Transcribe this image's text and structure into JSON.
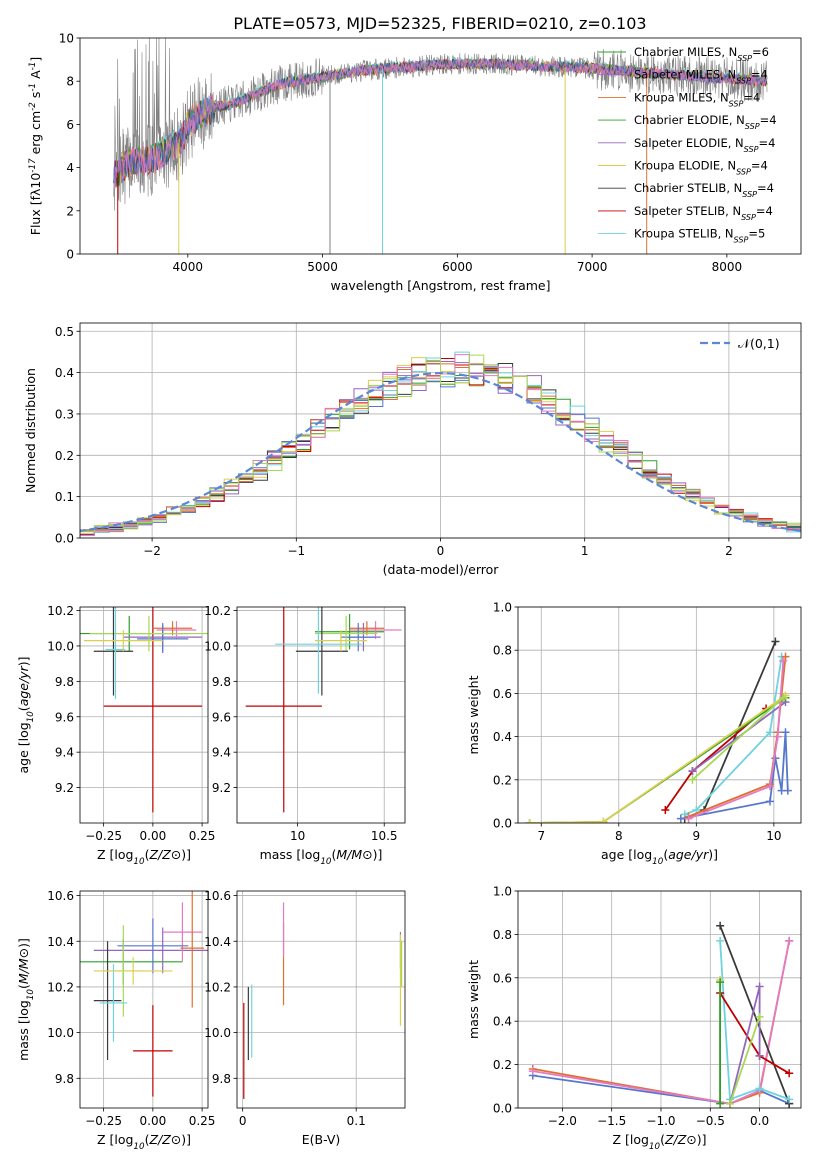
{
  "figure": {
    "title": "PLATE=0573, MJD=52325, FIBERID=0210, z=0.103"
  },
  "series_colors": [
    "#2ca02c",
    "#9467bd",
    "#dccf4e",
    "#3a3a3a",
    "#c00000",
    "#6fd3de",
    "#5577cc",
    "#e07030",
    "#e27ac4",
    "#a6d854",
    "#808080"
  ],
  "chart_data": [
    {
      "id": "spectrum",
      "type": "line",
      "xlabel": "wavelength [Angstrom, rest frame]",
      "ylabel": "Flux [f$_\\lambda$10$^{-17}$ erg cm$^{-2}$ s$^{-1}$ A$^{-1}$]",
      "xlim": [
        3200,
        8550
      ],
      "ylim": [
        0,
        10
      ],
      "xticks": [
        4000,
        5000,
        6000,
        7000,
        8000
      ],
      "yticks": [
        0,
        2,
        4,
        6,
        8,
        10
      ],
      "grid": false,
      "legend_position": "top-right",
      "legend": [
        {
          "label": "Chabrier MILES, N$_{SSP}$=6",
          "color": "#2ca02c"
        },
        {
          "label": "Salpeter MILES, N$_{SSP}$=4",
          "color": "#9467bd"
        },
        {
          "label": "Kroupa MILES, N$_{SSP}$=4",
          "color": "#e07030"
        },
        {
          "label": "Chabrier ELODIE, N$_{SSP}$=4",
          "color": "#2ca02c"
        },
        {
          "label": "Salpeter ELODIE, N$_{SSP}$=4",
          "color": "#9467bd"
        },
        {
          "label": "Kroupa ELODIE, N$_{SSP}$=4",
          "color": "#dccf4e"
        },
        {
          "label": "Chabrier STELIB, N$_{SSP}$=4",
          "color": "#3a3a3a"
        },
        {
          "label": "Salpeter STELIB, N$_{SSP}$=4",
          "color": "#c00000"
        },
        {
          "label": "Kroupa STELIB, N$_{SSP}$=5",
          "color": "#6fd3de"
        }
      ],
      "data_range": [
        3450,
        8300
      ],
      "continuum": {
        "x": [
          3450,
          3550,
          3650,
          3750,
          3850,
          3950,
          4000,
          4100,
          4200,
          4300,
          4400,
          4500,
          4700,
          4900,
          5100,
          5300,
          5500,
          5700,
          6000,
          6300,
          6600,
          7000,
          7400,
          7800,
          8300
        ],
        "y": [
          3.6,
          4.2,
          4.3,
          4.4,
          4.8,
          5.2,
          6.0,
          6.5,
          6.8,
          6.9,
          7.1,
          7.4,
          7.9,
          8.1,
          8.3,
          8.5,
          8.6,
          8.7,
          8.8,
          8.8,
          8.7,
          8.6,
          8.4,
          8.2,
          8.0
        ]
      },
      "dips": [
        {
          "x": 3933,
          "y": 0
        },
        {
          "x": 5055,
          "y": 0
        },
        {
          "x": 5445,
          "y": 0
        },
        {
          "x": 6800,
          "y": 0
        },
        {
          "x": 7405,
          "y": 0
        },
        {
          "x": 3480,
          "y": 0
        }
      ]
    },
    {
      "id": "residuals",
      "type": "histogram",
      "xlabel": "(data-model)/error",
      "ylabel": "Normed distribution",
      "xlim": [
        -2.5,
        2.5
      ],
      "ylim": [
        0,
        0.52
      ],
      "xticks": [
        -2,
        -1,
        0,
        1,
        2
      ],
      "yticks": [
        0.0,
        0.1,
        0.2,
        0.3,
        0.4,
        0.5
      ],
      "grid": true,
      "bin_width": 0.1,
      "legend_position": "top-right",
      "gaussian_label": "$\\mathcal{N}(0,1)$",
      "gaussian_color": "#5b87d6"
    },
    {
      "id": "age-vs-Z",
      "type": "scatter",
      "xlabel": "Z [log$_{10}$($Z/Z_\\odot$)]",
      "ylabel": "age  [log$_{10}$($age/yr$)]",
      "xlim": [
        -0.37,
        0.28
      ],
      "ylim": [
        9.0,
        10.22
      ],
      "xticks": [
        -0.25,
        0.0,
        0.25
      ],
      "xticklabels": [
        "−0.25",
        "0.00",
        "0.25"
      ],
      "yticks": [
        9.2,
        9.4,
        9.6,
        9.8,
        10.0,
        10.2
      ],
      "grid": true,
      "points": [
        {
          "x": 0.0,
          "y": 9.66,
          "xerr": 0.25,
          "yerr": 0.6,
          "color": "#c00000"
        },
        {
          "x": -0.12,
          "y": 10.07,
          "xerr": 0.3,
          "yerr": 0.1,
          "color": "#2ca02c"
        },
        {
          "x": 0.05,
          "y": 10.05,
          "xerr": 0.2,
          "yerr": 0.08,
          "color": "#9467bd"
        },
        {
          "x": 0.12,
          "y": 10.09,
          "xerr": 0.1,
          "yerr": 0.05,
          "color": "#e27ac4"
        },
        {
          "x": 0.1,
          "y": 10.1,
          "xerr": 0.1,
          "yerr": 0.04,
          "color": "#e07030"
        },
        {
          "x": 0.05,
          "y": 10.04,
          "xerr": 0.13,
          "yerr": 0.08,
          "color": "#5577cc"
        },
        {
          "x": -0.02,
          "y": 10.07,
          "xerr": 0.3,
          "yerr": 0.1,
          "color": "#a6d854"
        },
        {
          "x": -0.2,
          "y": 9.97,
          "xerr": 0.1,
          "yerr": 0.25,
          "color": "#3a3a3a"
        },
        {
          "x": -0.19,
          "y": 9.98,
          "xerr": 0.05,
          "yerr": 0.28,
          "color": "#6fd3de"
        },
        {
          "x": -0.15,
          "y": 10.03,
          "xerr": 0.2,
          "yerr": 0.06,
          "color": "#dccf4e"
        }
      ]
    },
    {
      "id": "age-vs-mass",
      "type": "scatter",
      "xlabel": "mass [log$_{10}$($M/M_\\odot$)]",
      "ylabel": "",
      "xlim": [
        9.65,
        10.62
      ],
      "ylim": [
        9.0,
        10.22
      ],
      "xticks": [
        10.0,
        10.5
      ],
      "yticks": [
        9.2,
        9.4,
        9.6,
        9.8,
        10.0,
        10.2
      ],
      "grid": true,
      "points": [
        {
          "x": 9.92,
          "y": 9.66,
          "xerr": 0.22,
          "yerr": 0.6,
          "color": "#c00000"
        },
        {
          "x": 10.3,
          "y": 10.08,
          "xerr": 0.2,
          "yerr": 0.1,
          "color": "#2ca02c"
        },
        {
          "x": 10.38,
          "y": 10.05,
          "xerr": 0.1,
          "yerr": 0.08,
          "color": "#9467bd"
        },
        {
          "x": 10.45,
          "y": 10.09,
          "xerr": 0.15,
          "yerr": 0.05,
          "color": "#e27ac4"
        },
        {
          "x": 10.4,
          "y": 10.1,
          "xerr": 0.1,
          "yerr": 0.04,
          "color": "#e07030"
        },
        {
          "x": 10.35,
          "y": 10.05,
          "xerr": 0.1,
          "yerr": 0.08,
          "color": "#5577cc"
        },
        {
          "x": 10.28,
          "y": 10.07,
          "xerr": 0.18,
          "yerr": 0.1,
          "color": "#a6d854"
        },
        {
          "x": 10.14,
          "y": 9.97,
          "xerr": 0.15,
          "yerr": 0.25,
          "color": "#3a3a3a"
        },
        {
          "x": 10.12,
          "y": 10.01,
          "xerr": 0.25,
          "yerr": 0.28,
          "color": "#6fd3de"
        },
        {
          "x": 10.25,
          "y": 10.03,
          "xerr": 0.15,
          "yerr": 0.06,
          "color": "#dccf4e"
        }
      ]
    },
    {
      "id": "weight-vs-age",
      "type": "line",
      "xlabel": "age  [log$_{10}$($age/yr$)]",
      "ylabel": "mass weight",
      "xlim": [
        6.7,
        10.35
      ],
      "ylim": [
        0,
        1.0
      ],
      "xticks": [
        7,
        8,
        9,
        10
      ],
      "yticks": [
        0.0,
        0.2,
        0.4,
        0.6,
        0.8,
        1.0
      ],
      "grid": true,
      "series": [
        {
          "color": "#3a3a3a",
          "x": [
            8.85,
            9.1,
            10.02
          ],
          "y": [
            0.02,
            0.06,
            0.84
          ]
        },
        {
          "color": "#c00000",
          "x": [
            8.6,
            8.95,
            9.9
          ],
          "y": [
            0.06,
            0.24,
            0.53
          ]
        },
        {
          "color": "#6fd3de",
          "x": [
            8.85,
            9.0,
            9.95,
            10.1
          ],
          "y": [
            0.04,
            0.06,
            0.42,
            0.77
          ]
        },
        {
          "color": "#9467bd",
          "x": [
            8.95,
            10.15
          ],
          "y": [
            0.24,
            0.56
          ]
        },
        {
          "color": "#2ca02c",
          "x": [
            6.85,
            7.8,
            10.15
          ],
          "y": [
            0.0,
            0.005,
            0.58
          ]
        },
        {
          "color": "#dccf4e",
          "x": [
            6.85,
            7.8,
            10.15
          ],
          "y": [
            0.0,
            0.005,
            0.59
          ]
        },
        {
          "color": "#5577cc",
          "x": [
            8.8,
            9.95,
            10.02,
            10.1,
            10.15,
            10.18
          ],
          "y": [
            0.02,
            0.1,
            0.3,
            0.15,
            0.42,
            0.15
          ]
        },
        {
          "color": "#e07030",
          "x": [
            8.9,
            9.95,
            10.05,
            10.15
          ],
          "y": [
            0.03,
            0.18,
            0.42,
            0.77
          ]
        },
        {
          "color": "#e27ac4",
          "x": [
            8.9,
            9.95,
            10.05,
            10.12
          ],
          "y": [
            0.02,
            0.17,
            0.4,
            0.75
          ]
        },
        {
          "color": "#a6d854",
          "x": [
            8.95,
            10.12
          ],
          "y": [
            0.2,
            0.58
          ]
        }
      ]
    },
    {
      "id": "mass-vs-Z",
      "type": "scatter",
      "xlabel": "Z [log$_{10}$($Z/Z_\\odot$)]",
      "ylabel": "mass [log$_{10}$($M/M_\\odot$)]",
      "xlim": [
        -0.37,
        0.28
      ],
      "ylim": [
        9.67,
        10.62
      ],
      "xticks": [
        -0.25,
        0.0,
        0.25
      ],
      "xticklabels": [
        "−0.25",
        "0.00",
        "0.25"
      ],
      "yticks": [
        9.8,
        10.0,
        10.2,
        10.4,
        10.6
      ],
      "grid": true,
      "points": [
        {
          "x": 0.0,
          "y": 9.92,
          "xerr": 0.1,
          "yerr": 0.2,
          "color": "#c00000"
        },
        {
          "x": -0.15,
          "y": 10.31,
          "xerr": 0.3,
          "yerr": 0.1,
          "color": "#2ca02c"
        },
        {
          "x": 0.05,
          "y": 10.36,
          "xerr": 0.35,
          "yerr": 0.1,
          "color": "#9467bd"
        },
        {
          "x": 0.15,
          "y": 10.44,
          "xerr": 0.1,
          "yerr": 0.13,
          "color": "#e27ac4"
        },
        {
          "x": 0.2,
          "y": 10.37,
          "xerr": 0.06,
          "yerr": 0.26,
          "color": "#e07030"
        },
        {
          "x": 0.0,
          "y": 10.38,
          "xerr": 0.18,
          "yerr": 0.12,
          "color": "#5577cc"
        },
        {
          "x": -0.15,
          "y": 10.27,
          "xerr": 0.1,
          "yerr": 0.2,
          "color": "#a6d854"
        },
        {
          "x": -0.23,
          "y": 10.14,
          "xerr": 0.07,
          "yerr": 0.26,
          "color": "#3a3a3a"
        },
        {
          "x": -0.2,
          "y": 10.13,
          "xerr": 0.07,
          "yerr": 0.17,
          "color": "#6fd3de"
        },
        {
          "x": -0.1,
          "y": 10.27,
          "xerr": 0.2,
          "yerr": 0.06,
          "color": "#dccf4e"
        }
      ]
    },
    {
      "id": "mass-vs-ebv",
      "type": "scatter",
      "xlabel": "E(B-V)",
      "ylabel": "",
      "xlim": [
        -0.005,
        0.143
      ],
      "ylim": [
        9.67,
        10.62
      ],
      "xticks": [
        0.0,
        0.1
      ],
      "yticks": [
        9.8,
        10.0,
        10.2,
        10.4,
        10.6
      ],
      "grid": true,
      "points": [
        {
          "x": 0.001,
          "y": 9.92,
          "xerr": 0,
          "yerr": 0.21,
          "color": "#c00000"
        },
        {
          "x": 0.005,
          "y": 10.04,
          "xerr": 0,
          "yerr": 0.16,
          "color": "#3a3a3a"
        },
        {
          "x": 0.008,
          "y": 10.05,
          "xerr": 0,
          "yerr": 0.16,
          "color": "#6fd3de"
        },
        {
          "x": 0.036,
          "y": 10.3,
          "xerr": 0,
          "yerr": 0.18,
          "color": "#e07030"
        },
        {
          "x": 0.036,
          "y": 10.45,
          "xerr": 0,
          "yerr": 0.12,
          "color": "#e27ac4"
        },
        {
          "x": 0.139,
          "y": 10.36,
          "xerr": 0,
          "yerr": 0.08,
          "color": "#9467bd"
        },
        {
          "x": 0.139,
          "y": 10.23,
          "xerr": 0,
          "yerr": 0.2,
          "color": "#dccf4e"
        },
        {
          "x": 0.14,
          "y": 10.3,
          "xerr": 0,
          "yerr": 0.1,
          "color": "#a6d854"
        }
      ]
    },
    {
      "id": "weight-vs-Z",
      "type": "line",
      "xlabel": "Z [log$_{10}$($Z/Z_\\odot$)]",
      "ylabel": "mass weight",
      "xlim": [
        -2.45,
        0.42
      ],
      "ylim": [
        0,
        1.0
      ],
      "xticks": [
        -2.0,
        -1.5,
        -1.0,
        -0.5,
        0.0
      ],
      "xticklabels": [
        "−2.0",
        "−1.5",
        "−1.0",
        "−0.5",
        "0.0"
      ],
      "yticks": [
        0.0,
        0.2,
        0.4,
        0.6,
        0.8,
        1.0
      ],
      "grid": true,
      "series": [
        {
          "color": "#5577cc",
          "x": [
            -2.3,
            -0.3,
            0.0,
            0.3
          ],
          "y": [
            0.15,
            0.02,
            0.08,
            0.02
          ]
        },
        {
          "color": "#e07030",
          "x": [
            -2.3,
            -0.3,
            0.0,
            0.3
          ],
          "y": [
            0.18,
            0.02,
            0.07,
            0.77
          ]
        },
        {
          "color": "#e27ac4",
          "x": [
            -2.3,
            -0.3,
            0.0,
            0.3
          ],
          "y": [
            0.17,
            0.02,
            0.08,
            0.77
          ]
        },
        {
          "color": "#3a3a3a",
          "x": [
            -0.4,
            0.3
          ],
          "y": [
            0.84,
            0.02
          ]
        },
        {
          "color": "#6fd3de",
          "x": [
            -0.4,
            -0.3,
            0.0,
            0.3
          ],
          "y": [
            0.77,
            0.04,
            0.09,
            0.04
          ]
        },
        {
          "color": "#c00000",
          "x": [
            -0.4,
            0.0,
            0.3
          ],
          "y": [
            0.53,
            0.24,
            0.16
          ]
        },
        {
          "color": "#9467bd",
          "x": [
            -0.3,
            0.0,
            0.0
          ],
          "y": [
            0.02,
            0.56,
            0.24
          ]
        },
        {
          "color": "#dccf4e",
          "x": [
            -0.4,
            -0.4
          ],
          "y": [
            0.02,
            0.59
          ]
        },
        {
          "color": "#2ca02c",
          "x": [
            -0.4,
            -0.4
          ],
          "y": [
            0.02,
            0.58
          ]
        },
        {
          "color": "#a6d854",
          "x": [
            -0.3,
            0.0
          ],
          "y": [
            0.02,
            0.42
          ]
        }
      ]
    }
  ]
}
